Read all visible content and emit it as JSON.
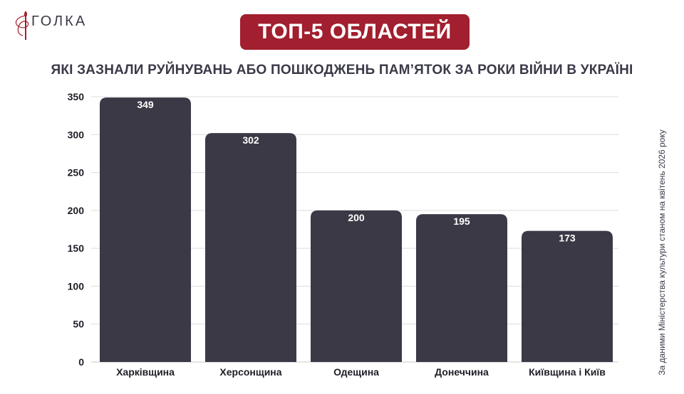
{
  "logo": {
    "text": "ГОЛКА",
    "icon": "needle-thread-icon"
  },
  "badge": "ТОП-5 ОБЛАСТЕЙ",
  "subtitle": "ЯКІ ЗАЗНАЛИ РУЙНУВАНЬ АБО ПОШКОДЖЕНЬ ПАМ’ЯТОК ЗА РОКИ ВІЙНИ В УКРАЇНІ",
  "source": "За даними Міністерства культури станом на квітень 2026 року",
  "colors": {
    "bar": "#3a3945",
    "badge": "#a11f2e",
    "grid": "#dcdcdc"
  },
  "chart_data": {
    "type": "bar",
    "categories": [
      "Харківщина",
      "Херсонщина",
      "Одещина",
      "Донеччина",
      "Київщина і Київ"
    ],
    "values": [
      349,
      302,
      200,
      195,
      173
    ],
    "ylim": [
      0,
      350
    ],
    "yticks": [
      0,
      50,
      100,
      150,
      200,
      250,
      300,
      350
    ],
    "grid": true
  }
}
